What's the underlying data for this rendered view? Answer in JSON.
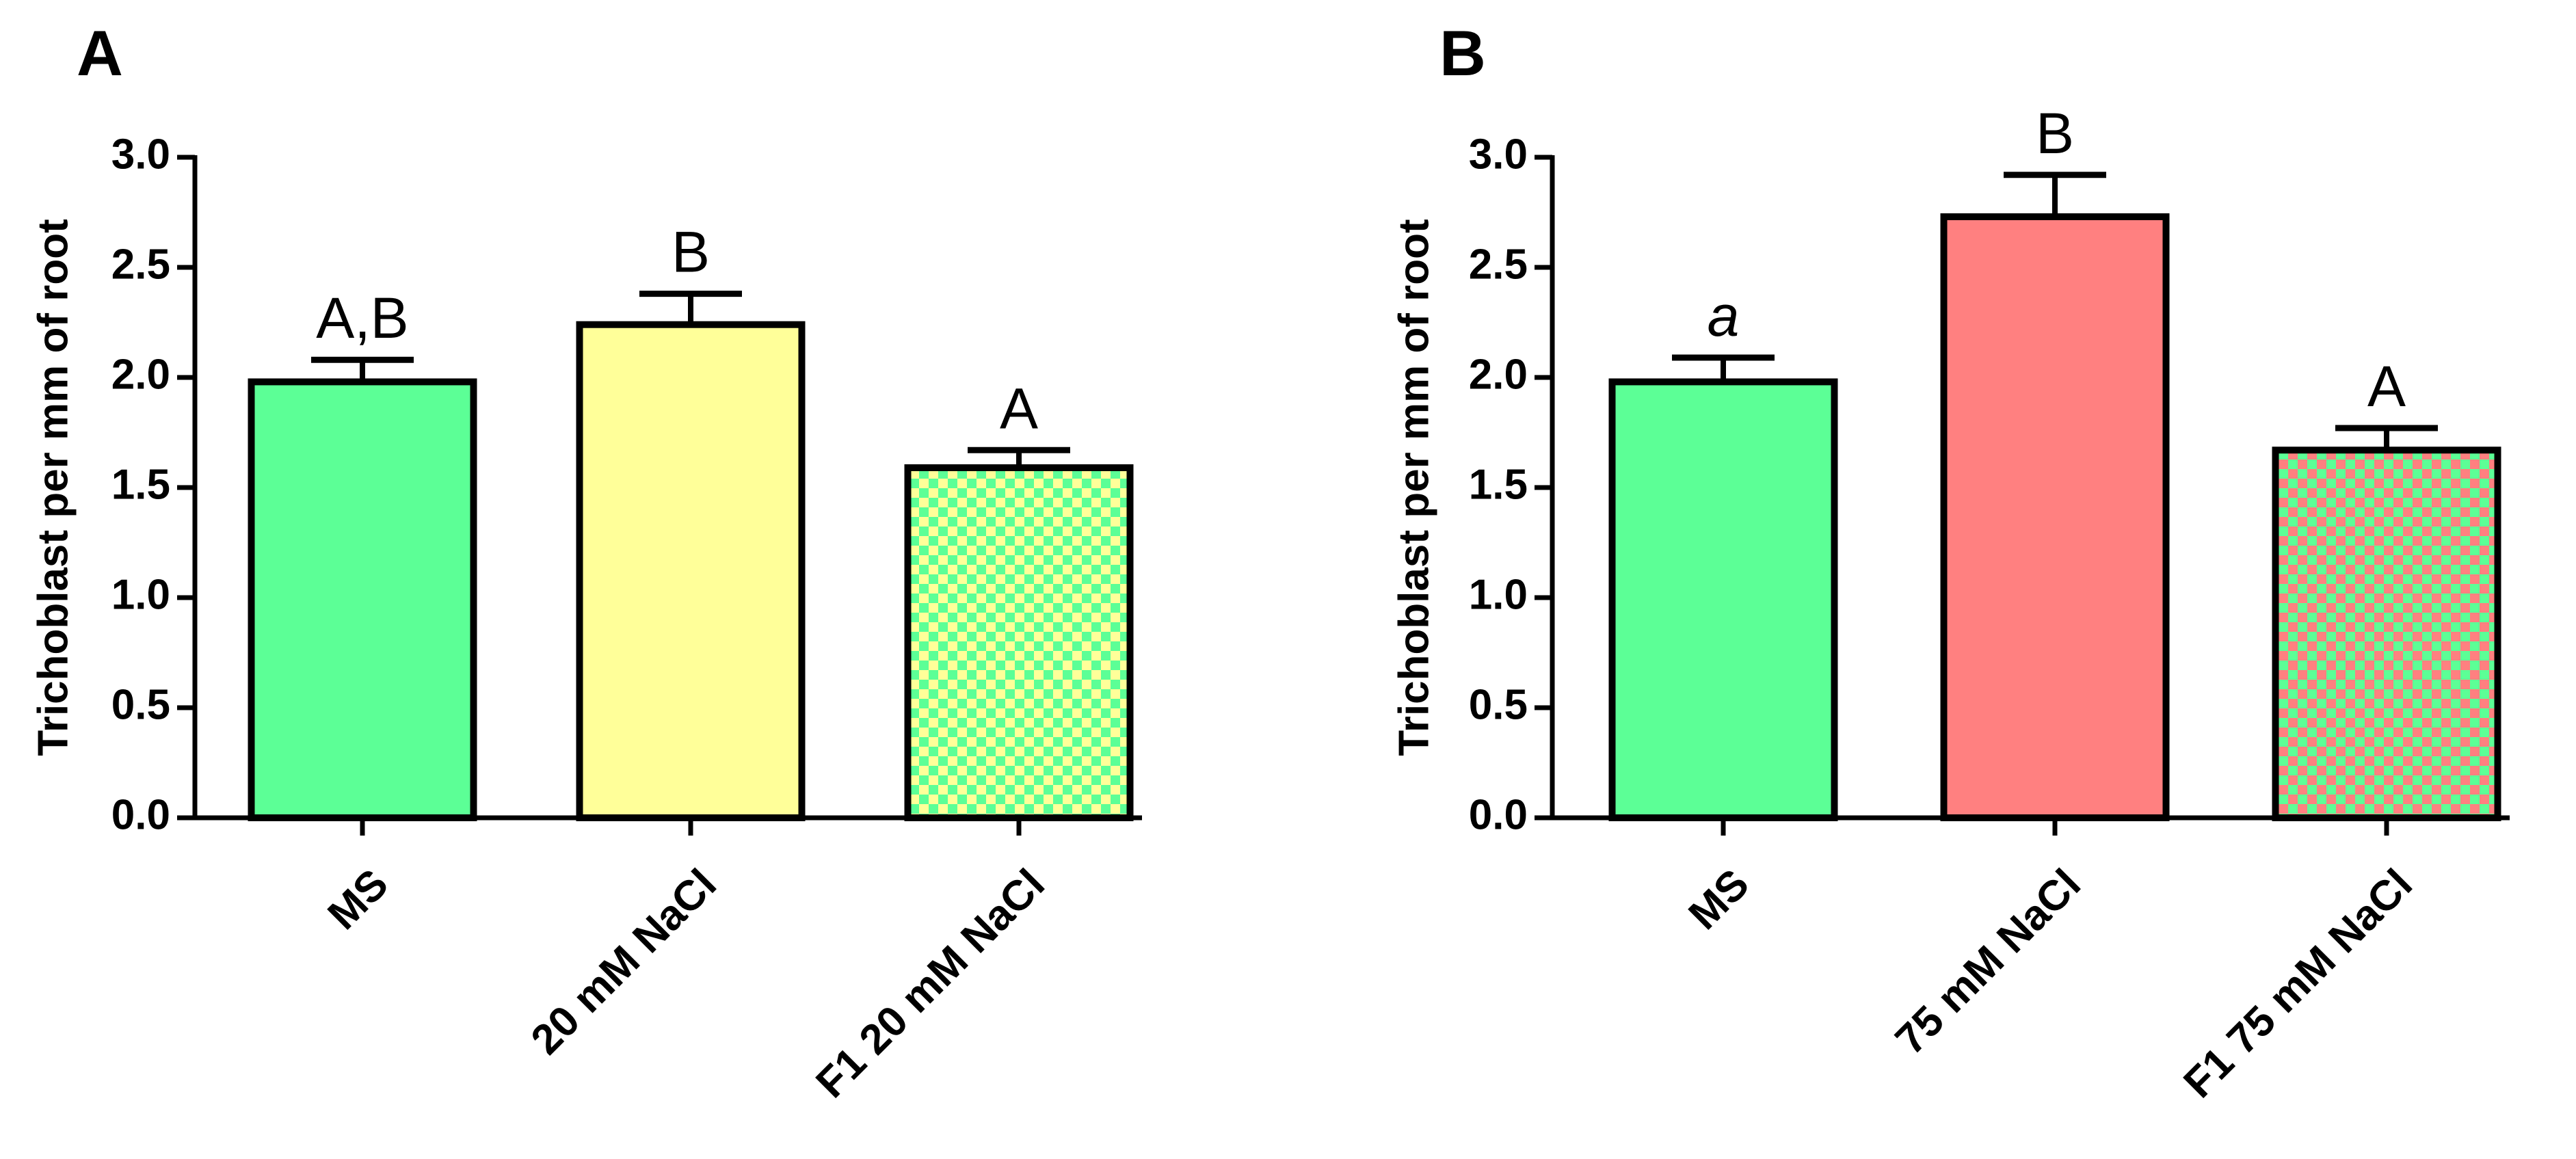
{
  "chart_data": [
    {
      "panel": "A",
      "type": "bar",
      "ylabel": "Trichoblast per mm of root",
      "xlabel": "",
      "ylim": [
        0,
        3.0
      ],
      "yticks": [
        "0.0",
        "0.5",
        "1.0",
        "1.5",
        "2.0",
        "2.5",
        "3.0"
      ],
      "categories": [
        "MS",
        "20 mM NaCl",
        "F1 20 mM NaCl"
      ],
      "values": [
        1.98,
        2.24,
        1.59
      ],
      "errors": [
        0.1,
        0.14,
        0.08
      ],
      "significance": [
        "A,B",
        "B",
        "A"
      ],
      "fills": [
        "#5cff96",
        "#ffff99",
        "checker:#ffff99:#5cff96"
      ]
    },
    {
      "panel": "B",
      "type": "bar",
      "ylabel": "Trichoblast per mm of root",
      "xlabel": "",
      "ylim": [
        0,
        3.0
      ],
      "yticks": [
        "0.0",
        "0.5",
        "1.0",
        "1.5",
        "2.0",
        "2.5",
        "3.0"
      ],
      "categories": [
        "MS",
        "75 mM NaCl",
        "F1 75 mM NaCl"
      ],
      "values": [
        1.98,
        2.73,
        1.67
      ],
      "errors": [
        0.11,
        0.19,
        0.1
      ],
      "significance": [
        "a",
        "B",
        "A"
      ],
      "significance_italic": [
        true,
        false,
        false
      ],
      "fills": [
        "#5cff96",
        "#ff8080",
        "checker:#ff8080:#5cff96"
      ]
    }
  ]
}
